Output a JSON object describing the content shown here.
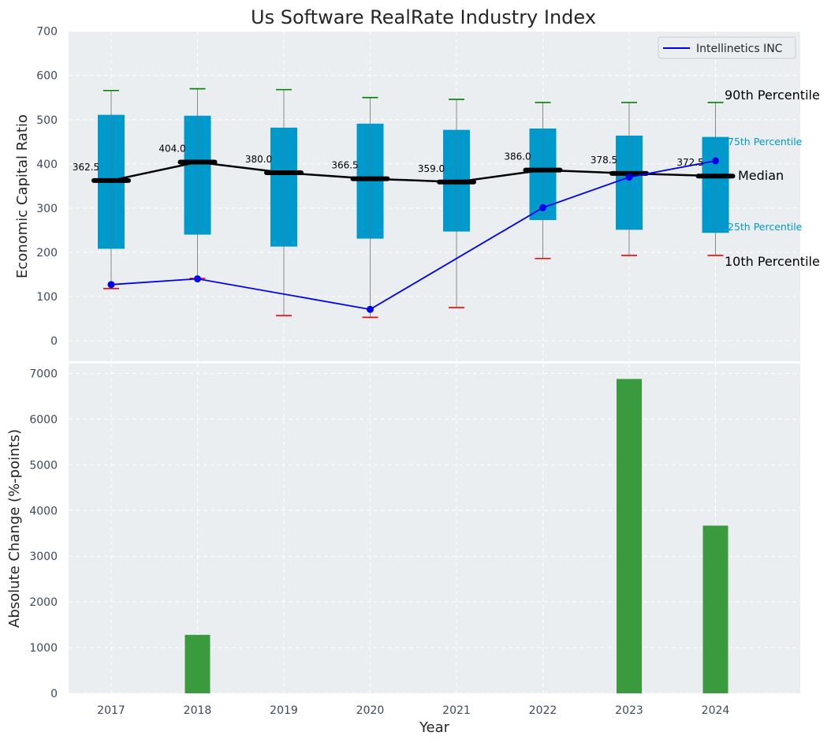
{
  "chart_data": [
    {
      "type": "box",
      "title": "Us Software RealRate Industry Index",
      "ylabel": "Economic Capital Ratio",
      "ylim": [
        -50,
        700
      ],
      "yticks": [
        0,
        100,
        200,
        300,
        400,
        500,
        600,
        700
      ],
      "grid": true,
      "legend_position": "top-right",
      "categories": [
        "2017",
        "2018",
        "2019",
        "2020",
        "2021",
        "2022",
        "2023",
        "2024"
      ],
      "p10": [
        118,
        141,
        57,
        53,
        75,
        186,
        193,
        193
      ],
      "p25": [
        208,
        240,
        213,
        231,
        247,
        273,
        251,
        244
      ],
      "median": [
        362.5,
        404.0,
        380.0,
        366.5,
        359.0,
        386.0,
        378.5,
        372.5
      ],
      "median_labels": [
        "362.5",
        "404.0",
        "380.0",
        "366.5",
        "359.0",
        "386.0",
        "378.5",
        "372.5"
      ],
      "p75": [
        511,
        509,
        482,
        491,
        477,
        480,
        464,
        461
      ],
      "p90": [
        566,
        570,
        568,
        550,
        546,
        539,
        539,
        539
      ],
      "series": [
        {
          "name": "Intellinetics INC",
          "x": [
            "2017",
            "2018",
            "2020",
            "2022",
            "2023",
            "2024"
          ],
          "values": [
            127,
            140,
            71,
            301,
            370,
            407
          ]
        }
      ],
      "annotations": {
        "p90": "90th Percentile",
        "p75": "75th Percentile",
        "median": "Median",
        "p25": "25th Percentile",
        "p10": "10th Percentile"
      },
      "colors": {
        "box": "#0099cc",
        "median": "#000000",
        "p90_cap": "#008000",
        "p10_cap": "#ff0000",
        "series": "#0000ee",
        "background": "#eaeef0"
      }
    },
    {
      "type": "bar",
      "xlabel": "Year",
      "ylabel": "Absolute Change (%-points)",
      "ylim": [
        0,
        7200
      ],
      "yticks": [
        0,
        1000,
        2000,
        3000,
        4000,
        5000,
        6000,
        7000
      ],
      "grid": true,
      "categories": [
        "2017",
        "2018",
        "2019",
        "2020",
        "2021",
        "2022",
        "2023",
        "2024"
      ],
      "values": [
        0,
        1280,
        0,
        0,
        0,
        0,
        6880,
        3670
      ],
      "colors": {
        "bar": "#3a9b3e"
      }
    }
  ]
}
